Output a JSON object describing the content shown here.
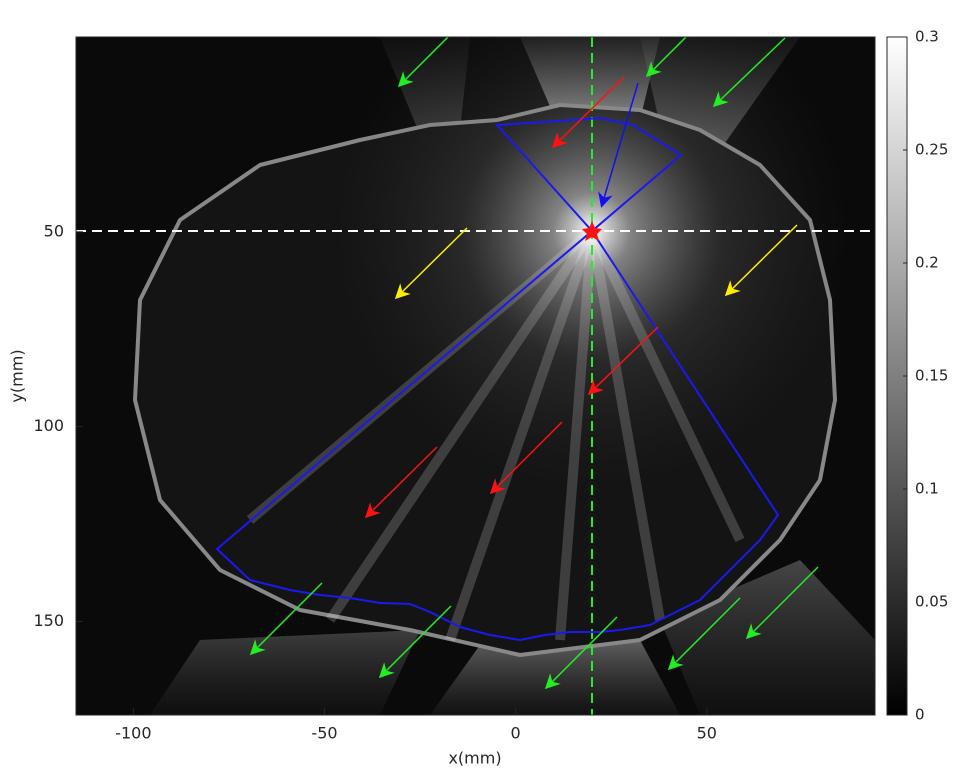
{
  "chart_data": {
    "type": "image",
    "xlabel": "x(mm)",
    "ylabel": "y(mm)",
    "xlim": [
      -115,
      94
    ],
    "ylim": [
      0,
      174
    ],
    "y_reversed": true,
    "xticks": [
      -100,
      -50,
      0,
      50
    ],
    "yticks": [
      50,
      100,
      150
    ],
    "colormap": "gray",
    "clim": [
      0,
      0.3
    ],
    "cticks": [
      0,
      0.05,
      0.1,
      0.15,
      0.2,
      0.25,
      0.3
    ]
  }
}
